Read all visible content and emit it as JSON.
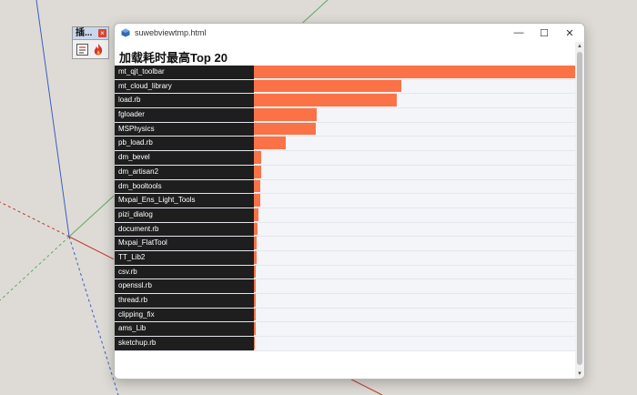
{
  "mini_toolbar": {
    "title": "插...",
    "close_glyph": "×",
    "icons": [
      "document-list-icon",
      "flame-icon"
    ]
  },
  "window": {
    "title": "suwebviewtmp.html",
    "buttons": {
      "minimize": "—",
      "maximize": "☐",
      "close": "✕"
    }
  },
  "page": {
    "heading": "加载耗时最高Top 20"
  },
  "colors": {
    "bar": "#fb7246",
    "label_bg": "#1e1e1e",
    "row_bg": "#f4f5f9"
  },
  "chart_data": {
    "type": "bar",
    "title": "加载耗时最高Top 20",
    "orientation": "horizontal",
    "categories": [
      "mt_qjt_toolbar",
      "mt_cloud_library",
      "load.rb",
      "fgloader",
      "MSPhysics",
      "pb_load.rb",
      "dm_bevel",
      "dm_artisan2",
      "dm_booltools",
      "Mxpai_Ens_Light_Tools",
      "pizi_dialog",
      "document.rb",
      "Mxpai_FlatTool",
      "TT_Lib2",
      "csv.rb",
      "openssl.rb",
      "thread.rb",
      "clipping_fix",
      "ams_Lib",
      "sketchup.rb"
    ],
    "values": [
      100,
      46,
      44.5,
      19.5,
      19.3,
      10,
      2.4,
      2.3,
      2.1,
      1.9,
      1.3,
      1.1,
      0.9,
      0.8,
      0.7,
      0.6,
      0.6,
      0.5,
      0.5,
      0.4
    ],
    "xlim": [
      0,
      100
    ]
  }
}
